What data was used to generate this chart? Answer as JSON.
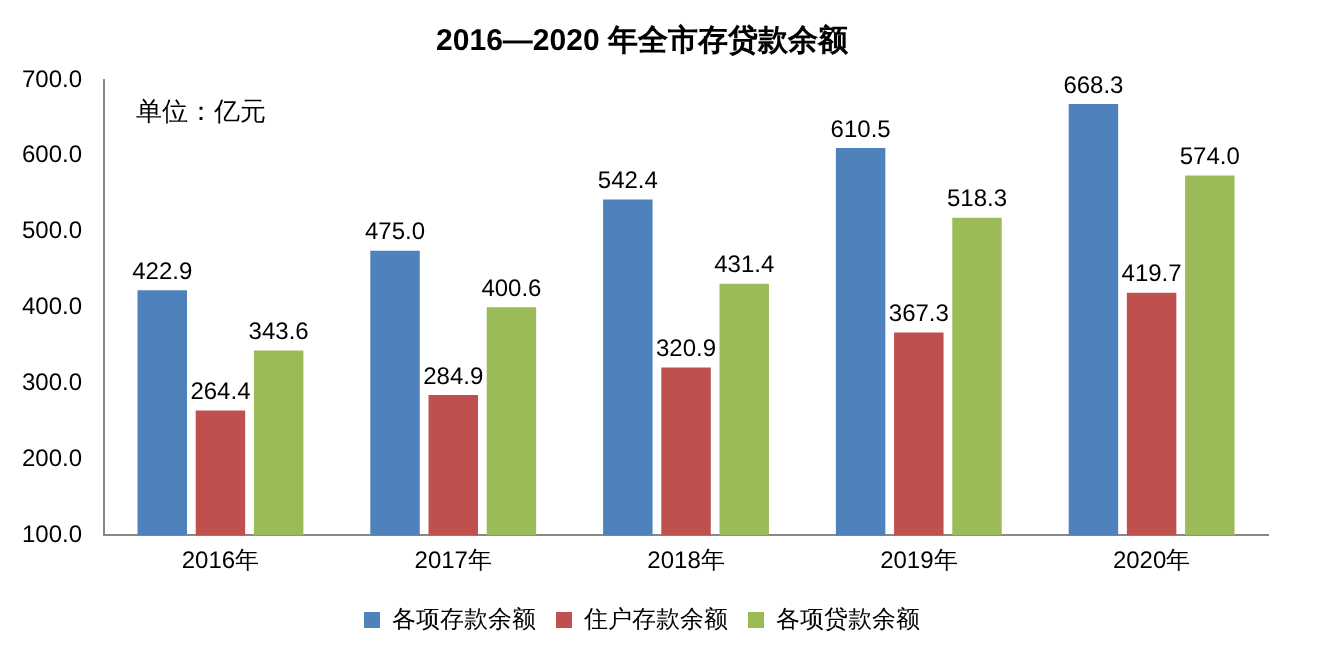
{
  "chart_data": {
    "type": "bar",
    "title": "2016—2020 年全市存贷款余额",
    "annotations": [
      "单位：亿元"
    ],
    "categories": [
      "2016年",
      "2017年",
      "2018年",
      "2019年",
      "2020年"
    ],
    "series": [
      {
        "name": "各项存款余额",
        "color": "#4f81bd",
        "values": [
          422.9,
          475.0,
          542.4,
          610.5,
          668.3
        ],
        "value_labels": [
          "422.9",
          "475.0",
          "542.4",
          "610.5",
          "668.3"
        ]
      },
      {
        "name": "住户存款余额",
        "color": "#c0504d",
        "values": [
          264.4,
          284.9,
          320.9,
          367.3,
          419.7
        ],
        "value_labels": [
          "264.4",
          "284.9",
          "320.9",
          "367.3",
          "419.7"
        ]
      },
      {
        "name": "各项贷款余额",
        "color": "#9bbb59",
        "values": [
          343.6,
          400.6,
          431.4,
          518.3,
          574.0
        ],
        "value_labels": [
          "343.6",
          "400.6",
          "431.4",
          "518.3",
          "574.0"
        ]
      }
    ],
    "ylim": [
      100,
      700
    ],
    "yticks": [
      {
        "value": 100,
        "label": "100.0"
      },
      {
        "value": 200,
        "label": "200.0"
      },
      {
        "value": 300,
        "label": "300.0"
      },
      {
        "value": 400,
        "label": "400.0"
      },
      {
        "value": 500,
        "label": "500.0"
      },
      {
        "value": 600,
        "label": "600.0"
      },
      {
        "value": 700,
        "label": "700.0"
      }
    ],
    "grid": false,
    "legend": "bottom"
  }
}
